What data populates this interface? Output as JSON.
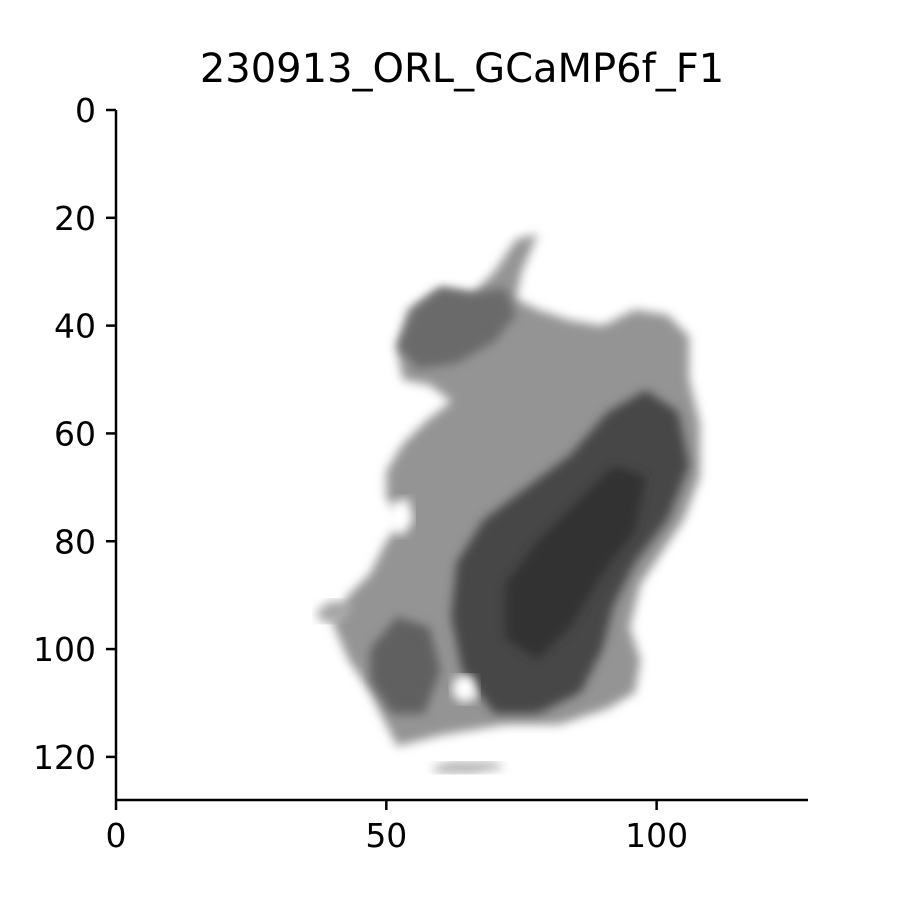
{
  "chart_data": {
    "type": "heatmap",
    "title": "230913_ORL_GCaMP6f_F1",
    "xlabel": "",
    "ylabel": "",
    "xlim": [
      0,
      128
    ],
    "ylim": [
      128,
      0
    ],
    "x_ticks": [
      0,
      50,
      100
    ],
    "y_ticks": [
      0,
      20,
      40,
      60,
      80,
      100,
      120
    ],
    "grid": false,
    "colormap": "gray_r",
    "background_color": "#ffffff",
    "image_extent": {
      "x": [
        0,
        128
      ],
      "y": [
        0,
        128
      ]
    },
    "intensity_regions": [
      {
        "points": [
          [
            52,
            118
          ],
          [
            60,
            116
          ],
          [
            72,
            114
          ],
          [
            82,
            114
          ],
          [
            91,
            111
          ],
          [
            96,
            108
          ],
          [
            97,
            102
          ],
          [
            95,
            96
          ],
          [
            97,
            88
          ],
          [
            101,
            82
          ],
          [
            105,
            76
          ],
          [
            108,
            68
          ],
          [
            108,
            58
          ],
          [
            106,
            50
          ],
          [
            106,
            42
          ],
          [
            102,
            38
          ],
          [
            96,
            37
          ],
          [
            90,
            40
          ],
          [
            84,
            39
          ],
          [
            78,
            37
          ],
          [
            74,
            35
          ],
          [
            75,
            30
          ],
          [
            78,
            23
          ],
          [
            74,
            24
          ],
          [
            70,
            30
          ],
          [
            66,
            34
          ],
          [
            60,
            33
          ],
          [
            54,
            37
          ],
          [
            52,
            44
          ],
          [
            53,
            50
          ],
          [
            58,
            51
          ],
          [
            62,
            54
          ],
          [
            57,
            58
          ],
          [
            53,
            62
          ],
          [
            50,
            67
          ],
          [
            50,
            72
          ],
          [
            53,
            76
          ],
          [
            50,
            80
          ],
          [
            47,
            86
          ],
          [
            43,
            90
          ],
          [
            40,
            95
          ],
          [
            43,
            102
          ],
          [
            47,
            108
          ]
        ],
        "level": 0.42
      },
      {
        "points": [
          [
            66,
            34
          ],
          [
            60,
            33
          ],
          [
            55,
            37
          ],
          [
            52,
            44
          ],
          [
            56,
            48
          ],
          [
            63,
            47
          ],
          [
            70,
            43
          ],
          [
            74,
            38
          ],
          [
            72,
            33
          ]
        ],
        "level": 0.58
      },
      {
        "points": [
          [
            63,
            84
          ],
          [
            68,
            76
          ],
          [
            76,
            70
          ],
          [
            84,
            64
          ],
          [
            91,
            56
          ],
          [
            98,
            52
          ],
          [
            104,
            56
          ],
          [
            106,
            66
          ],
          [
            102,
            76
          ],
          [
            96,
            84
          ],
          [
            92,
            92
          ],
          [
            90,
            100
          ],
          [
            86,
            108
          ],
          [
            78,
            112
          ],
          [
            70,
            112
          ],
          [
            64,
            104
          ],
          [
            62,
            94
          ]
        ],
        "level": 0.72
      },
      {
        "points": [
          [
            72,
            88
          ],
          [
            78,
            80
          ],
          [
            86,
            72
          ],
          [
            92,
            66
          ],
          [
            98,
            68
          ],
          [
            96,
            78
          ],
          [
            90,
            86
          ],
          [
            84,
            96
          ],
          [
            78,
            102
          ],
          [
            72,
            98
          ]
        ],
        "level": 0.8
      },
      {
        "points": [
          [
            47,
            100
          ],
          [
            52,
            94
          ],
          [
            58,
            96
          ],
          [
            60,
            104
          ],
          [
            57,
            112
          ],
          [
            51,
            112
          ],
          [
            47,
            106
          ]
        ],
        "level": 0.62
      },
      {
        "points": [
          [
            58,
            122
          ],
          [
            62,
            121
          ],
          [
            70,
            121
          ],
          [
            72,
            122
          ],
          [
            66,
            123
          ],
          [
            60,
            123
          ]
        ],
        "level": 0.32
      },
      {
        "points": [
          [
            37,
            93
          ],
          [
            40,
            91
          ],
          [
            44,
            92
          ],
          [
            42,
            95
          ],
          [
            38,
            95
          ]
        ],
        "level": 0.35
      }
    ],
    "blank_regions": [
      {
        "points": [
          [
            51,
            73
          ],
          [
            54,
            72
          ],
          [
            55,
            76
          ],
          [
            53,
            79
          ],
          [
            50,
            77
          ]
        ]
      },
      {
        "points": [
          [
            63,
            105
          ],
          [
            66,
            105
          ],
          [
            67,
            109
          ],
          [
            64,
            110
          ],
          [
            62,
            108
          ]
        ]
      }
    ]
  }
}
